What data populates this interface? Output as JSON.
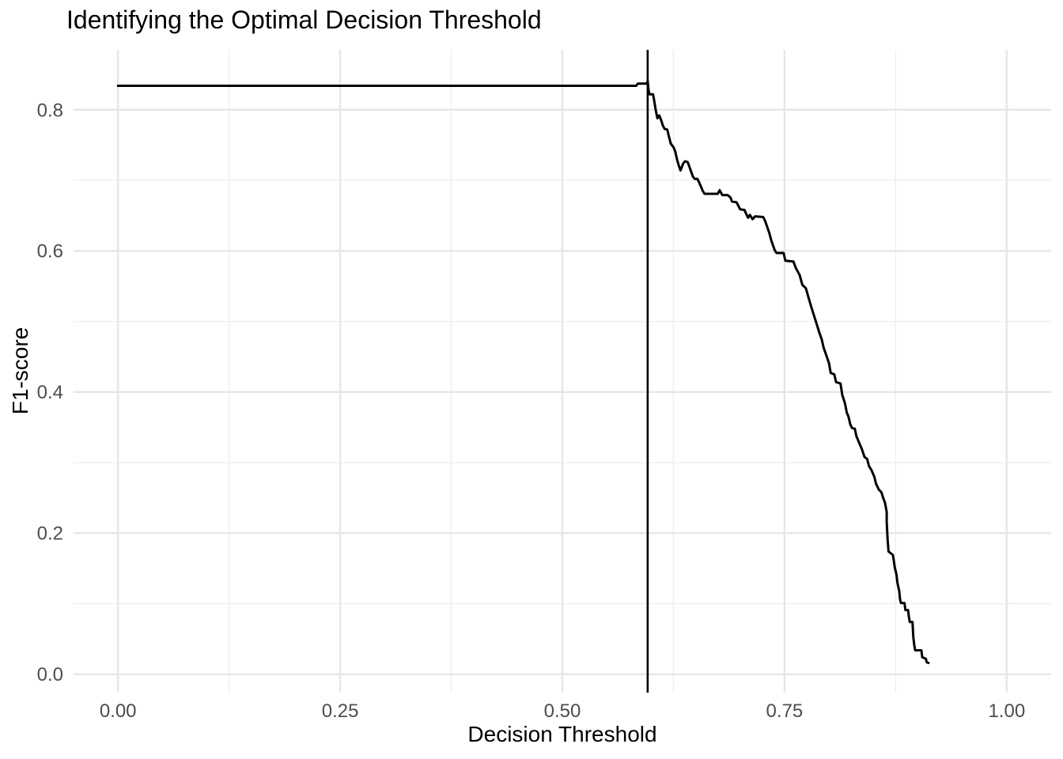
{
  "page": {
    "background": "#FFFFFF"
  },
  "chart_data": {
    "type": "line",
    "title": "Identifying the Optimal Decision Threshold",
    "xlabel": "Decision Threshold",
    "ylabel": "F1-score",
    "x_tick_labels": [
      "0.00",
      "0.25",
      "0.50",
      "0.75",
      "1.00"
    ],
    "x_tick_values": [
      0,
      0.25,
      0.5,
      0.75,
      1.0
    ],
    "y_tick_labels": [
      "0.0",
      "0.2",
      "0.4",
      "0.6",
      "0.8"
    ],
    "y_tick_values": [
      0,
      0.2,
      0.4,
      0.6,
      0.8
    ],
    "x_minor_ticks": [
      0.125,
      0.375,
      0.625,
      0.875
    ],
    "y_minor_ticks": [
      0.1,
      0.3,
      0.5,
      0.7
    ],
    "xlim": [
      -0.05,
      1.05
    ],
    "ylim": [
      -0.026,
      0.885
    ],
    "grid": "major+minor",
    "legend": "none",
    "vline_x": 0.596,
    "colors": {
      "line": "#000000",
      "vline": "#000000",
      "grid_major": "#E6E6E6",
      "grid_minor": "#F0F0F0",
      "tick_label": "#4D4D4D",
      "title_text": "#000000",
      "axis_title_text": "#000000",
      "background": "#FFFFFF"
    },
    "series": [
      {
        "name": "F1 vs threshold",
        "color": "#000000",
        "points": [
          [
            0.0,
            0.834
          ],
          [
            0.583,
            0.834
          ],
          [
            0.585,
            0.837
          ],
          [
            0.595,
            0.837
          ],
          [
            0.596,
            0.841
          ],
          [
            0.597,
            0.828
          ],
          [
            0.598,
            0.822
          ],
          [
            0.602,
            0.822
          ],
          [
            0.603,
            0.816
          ],
          [
            0.605,
            0.8
          ],
          [
            0.607,
            0.788
          ],
          [
            0.609,
            0.792
          ],
          [
            0.611,
            0.786
          ],
          [
            0.613,
            0.778
          ],
          [
            0.615,
            0.773
          ],
          [
            0.618,
            0.772
          ],
          [
            0.62,
            0.762
          ],
          [
            0.622,
            0.752
          ],
          [
            0.625,
            0.747
          ],
          [
            0.627,
            0.741
          ],
          [
            0.629,
            0.73
          ],
          [
            0.631,
            0.721
          ],
          [
            0.633,
            0.714
          ],
          [
            0.636,
            0.724
          ],
          [
            0.638,
            0.727
          ],
          [
            0.641,
            0.726
          ],
          [
            0.643,
            0.719
          ],
          [
            0.645,
            0.712
          ],
          [
            0.647,
            0.705
          ],
          [
            0.649,
            0.702
          ],
          [
            0.652,
            0.702
          ],
          [
            0.654,
            0.697
          ],
          [
            0.656,
            0.691
          ],
          [
            0.658,
            0.685
          ],
          [
            0.66,
            0.681
          ],
          [
            0.675,
            0.681
          ],
          [
            0.677,
            0.686
          ],
          [
            0.68,
            0.679
          ],
          [
            0.686,
            0.679
          ],
          [
            0.689,
            0.676
          ],
          [
            0.691,
            0.67
          ],
          [
            0.696,
            0.669
          ],
          [
            0.698,
            0.664
          ],
          [
            0.7,
            0.659
          ],
          [
            0.705,
            0.658
          ],
          [
            0.707,
            0.652
          ],
          [
            0.709,
            0.647
          ],
          [
            0.711,
            0.651
          ],
          [
            0.714,
            0.645
          ],
          [
            0.717,
            0.649
          ],
          [
            0.726,
            0.648
          ],
          [
            0.728,
            0.643
          ],
          [
            0.73,
            0.636
          ],
          [
            0.733,
            0.625
          ],
          [
            0.735,
            0.615
          ],
          [
            0.737,
            0.608
          ],
          [
            0.739,
            0.601
          ],
          [
            0.741,
            0.597
          ],
          [
            0.749,
            0.597
          ],
          [
            0.751,
            0.586
          ],
          [
            0.76,
            0.585
          ],
          [
            0.763,
            0.575
          ],
          [
            0.767,
            0.566
          ],
          [
            0.77,
            0.552
          ],
          [
            0.774,
            0.547
          ],
          [
            0.777,
            0.534
          ],
          [
            0.78,
            0.521
          ],
          [
            0.783,
            0.509
          ],
          [
            0.786,
            0.497
          ],
          [
            0.789,
            0.485
          ],
          [
            0.792,
            0.474
          ],
          [
            0.794,
            0.463
          ],
          [
            0.797,
            0.452
          ],
          [
            0.8,
            0.441
          ],
          [
            0.802,
            0.427
          ],
          [
            0.806,
            0.425
          ],
          [
            0.808,
            0.414
          ],
          [
            0.813,
            0.412
          ],
          [
            0.815,
            0.396
          ],
          [
            0.818,
            0.384
          ],
          [
            0.82,
            0.371
          ],
          [
            0.822,
            0.365
          ],
          [
            0.824,
            0.354
          ],
          [
            0.826,
            0.349
          ],
          [
            0.829,
            0.348
          ],
          [
            0.831,
            0.337
          ],
          [
            0.834,
            0.328
          ],
          [
            0.837,
            0.319
          ],
          [
            0.84,
            0.308
          ],
          [
            0.843,
            0.305
          ],
          [
            0.845,
            0.295
          ],
          [
            0.848,
            0.289
          ],
          [
            0.851,
            0.28
          ],
          [
            0.853,
            0.27
          ],
          [
            0.856,
            0.262
          ],
          [
            0.859,
            0.258
          ],
          [
            0.861,
            0.25
          ],
          [
            0.863,
            0.243
          ],
          [
            0.865,
            0.23
          ],
          [
            0.865,
            0.216
          ],
          [
            0.866,
            0.19
          ],
          [
            0.867,
            0.174
          ],
          [
            0.872,
            0.169
          ],
          [
            0.874,
            0.152
          ],
          [
            0.876,
            0.141
          ],
          [
            0.877,
            0.13
          ],
          [
            0.879,
            0.118
          ],
          [
            0.88,
            0.106
          ],
          [
            0.881,
            0.101
          ],
          [
            0.885,
            0.101
          ],
          [
            0.886,
            0.091
          ],
          [
            0.889,
            0.091
          ],
          [
            0.89,
            0.081
          ],
          [
            0.891,
            0.074
          ],
          [
            0.894,
            0.074
          ],
          [
            0.895,
            0.052
          ],
          [
            0.896,
            0.041
          ],
          [
            0.897,
            0.034
          ],
          [
            0.904,
            0.034
          ],
          [
            0.905,
            0.024
          ],
          [
            0.909,
            0.022
          ],
          [
            0.91,
            0.017
          ],
          [
            0.912,
            0.016
          ]
        ]
      }
    ]
  }
}
